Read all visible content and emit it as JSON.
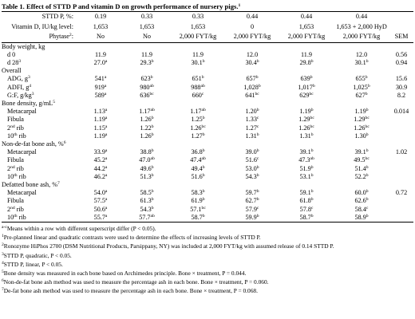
{
  "title": {
    "text": "Table 1. Effect of STTD P and vitamin D on growth performance of nursery pigs.",
    "sup": "1"
  },
  "header_rows": [
    {
      "label": "STTD P, %:",
      "cells": [
        "0.19",
        "0.33",
        "0.33",
        "0.44",
        "0.44",
        "0.44"
      ]
    },
    {
      "label": "Vitamin D, IU/kg level:",
      "cells": [
        "1,653",
        "1,653",
        "1,653",
        "0",
        "1,653",
        "1,653 + 2,000 HyD"
      ]
    },
    {
      "label": {
        "text": "Phytase",
        "sup": "2",
        "after": ":"
      },
      "cells": [
        "No",
        "No",
        "2,000 FYT/kg",
        "2,000 FYT/kg",
        "2,000 FYT/kg",
        "2,000 FYT/kg",
        "SEM"
      ]
    }
  ],
  "sections": [
    {
      "label": "Body weight, kg",
      "rows": [
        {
          "label": "d 0",
          "cells": [
            "11.9",
            "11.9",
            "11.9",
            "12.0",
            "11.9",
            "12.0",
            "0.56"
          ]
        },
        {
          "label": {
            "text": "d 28",
            "sup": "3"
          },
          "cells": [
            {
              "text": "27.0",
              "sup": "a"
            },
            {
              "text": "29.3",
              "sup": "b"
            },
            {
              "text": "30.1",
              "sup": "b"
            },
            {
              "text": "30.4",
              "sup": "b"
            },
            {
              "text": "29.8",
              "sup": "b"
            },
            {
              "text": "30.1",
              "sup": "b"
            },
            "0.94"
          ]
        }
      ]
    },
    {
      "label": "Overall",
      "rows": [
        {
          "label": {
            "text": "ADG, g",
            "sup": "3"
          },
          "cells": [
            {
              "text": "541",
              "sup": "a"
            },
            {
              "text": "623",
              "sup": "b"
            },
            {
              "text": "651",
              "sup": "b"
            },
            {
              "text": "657",
              "sup": "b"
            },
            {
              "text": "639",
              "sup": "b"
            },
            {
              "text": "655",
              "sup": "b"
            },
            "15.6"
          ]
        },
        {
          "label": {
            "text": "ADFI, g",
            "sup": "4"
          },
          "cells": [
            {
              "text": "919",
              "sup": "a"
            },
            {
              "text": "980",
              "sup": "ab"
            },
            {
              "text": "988",
              "sup": "ab"
            },
            {
              "text": "1,028",
              "sup": "b"
            },
            {
              "text": "1,017",
              "sup": "b"
            },
            {
              "text": "1,025",
              "sup": "b"
            },
            "30.9"
          ]
        },
        {
          "label": {
            "text": "G:F, g/kg",
            "sup": "3"
          },
          "cells": [
            {
              "text": "589",
              "sup": "a"
            },
            {
              "text": "636",
              "sup": "bc"
            },
            {
              "text": "660",
              "sup": "c"
            },
            {
              "text": "641",
              "sup": "bc"
            },
            {
              "text": "629",
              "sup": "bc"
            },
            {
              "text": "627",
              "sup": "b"
            },
            "8.2"
          ]
        }
      ]
    },
    {
      "label": {
        "text": "Bone density, g/mL",
        "sup": "5"
      },
      "rows": [
        {
          "label": "Metacarpal",
          "cells": [
            {
              "text": "1.13",
              "sup": "a"
            },
            {
              "text": "1.17",
              "sup": "ab"
            },
            {
              "text": "1.17",
              "sup": "ab"
            },
            {
              "text": "1.20",
              "sup": "b"
            },
            {
              "text": "1.19",
              "sup": "b"
            },
            {
              "text": "1.19",
              "sup": "b"
            },
            "0.014"
          ]
        },
        {
          "label": "Fibula",
          "cells": [
            {
              "text": "1.19",
              "sup": "a"
            },
            {
              "text": "1.26",
              "sup": "b"
            },
            {
              "text": "1.25",
              "sup": "b"
            },
            {
              "text": "1.33",
              "sup": "c"
            },
            {
              "text": "1.29",
              "sup": "bc"
            },
            {
              "text": "1.29",
              "sup": "bc"
            }
          ]
        },
        {
          "label": {
            "text": "2",
            "sup": "nd",
            "after": " rib"
          },
          "cells": [
            {
              "text": "1.15",
              "sup": "a"
            },
            {
              "text": "1.22",
              "sup": "b"
            },
            {
              "text": "1.26",
              "sup": "bc"
            },
            {
              "text": "1.27",
              "sup": "c"
            },
            {
              "text": "1.26",
              "sup": "bc"
            },
            {
              "text": "1.26",
              "sup": "bc"
            }
          ]
        },
        {
          "label": {
            "text": "10",
            "sup": "th",
            "after": " rib"
          },
          "cells": [
            {
              "text": "1.19",
              "sup": "a"
            },
            {
              "text": "1.26",
              "sup": "b"
            },
            {
              "text": "1.27",
              "sup": "b"
            },
            {
              "text": "1.31",
              "sup": "b"
            },
            {
              "text": "1.31",
              "sup": "b"
            },
            {
              "text": "1.30",
              "sup": "b"
            }
          ]
        }
      ]
    },
    {
      "label": {
        "text": "Non-de-fat bone ash, %",
        "sup": "6"
      },
      "rows": [
        {
          "label": "Metacarpal",
          "cells": [
            {
              "text": "33.9",
              "sup": "a"
            },
            {
              "text": "38.8",
              "sup": "b"
            },
            {
              "text": "36.8",
              "sup": "b"
            },
            {
              "text": "39.0",
              "sup": "b"
            },
            {
              "text": "39.1",
              "sup": "b"
            },
            {
              "text": "39.1",
              "sup": "b"
            },
            "1.02"
          ]
        },
        {
          "label": "Fibula",
          "cells": [
            {
              "text": "45.2",
              "sup": "a"
            },
            {
              "text": "47.0",
              "sup": "ab"
            },
            {
              "text": "47.4",
              "sup": "ab"
            },
            {
              "text": "51.6",
              "sup": "c"
            },
            {
              "text": "47.3",
              "sup": "ab"
            },
            {
              "text": "49.5",
              "sup": "bc"
            }
          ]
        },
        {
          "label": {
            "text": "2",
            "sup": "nd",
            "after": " rib"
          },
          "cells": [
            {
              "text": "44.2",
              "sup": "a"
            },
            {
              "text": "49.6",
              "sup": "b"
            },
            {
              "text": "49.4",
              "sup": "b"
            },
            {
              "text": "53.0",
              "sup": "b"
            },
            {
              "text": "51.9",
              "sup": "b"
            },
            {
              "text": "51.4",
              "sup": "b"
            }
          ]
        },
        {
          "label": {
            "text": "10",
            "sup": "th",
            "after": " rib"
          },
          "cells": [
            {
              "text": "46.2",
              "sup": "a"
            },
            {
              "text": "51.3",
              "sup": "b"
            },
            {
              "text": "51.6",
              "sup": "b"
            },
            {
              "text": "54.3",
              "sup": "b"
            },
            {
              "text": "53.1",
              "sup": "b"
            },
            {
              "text": "52.2",
              "sup": "b"
            }
          ]
        }
      ]
    },
    {
      "label": {
        "text": "Defatted bone ash, %",
        "sup": "7"
      },
      "rows": [
        {
          "label": "Metacarpal",
          "cells": [
            {
              "text": "54.0",
              "sup": "a"
            },
            {
              "text": "58.5",
              "sup": "b"
            },
            {
              "text": "58.3",
              "sup": "b"
            },
            {
              "text": "59.7",
              "sup": "b"
            },
            {
              "text": "59.1",
              "sup": "b"
            },
            {
              "text": "60.0",
              "sup": "b"
            },
            "0.72"
          ]
        },
        {
          "label": "Fibula",
          "cells": [
            {
              "text": "57.5",
              "sup": "a"
            },
            {
              "text": "61.3",
              "sup": "b"
            },
            {
              "text": "61.9",
              "sup": "b"
            },
            {
              "text": "62.7",
              "sup": "b"
            },
            {
              "text": "61.8",
              "sup": "b"
            },
            {
              "text": "62.6",
              "sup": "b"
            }
          ]
        },
        {
          "label": {
            "text": "2",
            "sup": "nd",
            "after": " rib"
          },
          "cells": [
            {
              "text": "50.6",
              "sup": "a"
            },
            {
              "text": "54.3",
              "sup": "b"
            },
            {
              "text": "57.1",
              "sup": "bc"
            },
            {
              "text": "57.9",
              "sup": "c"
            },
            {
              "text": "57.8",
              "sup": "c"
            },
            {
              "text": "58.4",
              "sup": "c"
            }
          ]
        },
        {
          "label": {
            "text": "10",
            "sup": "th",
            "after": " rib"
          },
          "cells": [
            {
              "text": "55.7",
              "sup": "a"
            },
            {
              "text": "57.7",
              "sup": "ab"
            },
            {
              "text": "58.7",
              "sup": "b"
            },
            {
              "text": "59.9",
              "sup": "b"
            },
            {
              "text": "58.7",
              "sup": "b"
            },
            {
              "text": "58.9",
              "sup": "b"
            }
          ]
        }
      ]
    }
  ],
  "footnotes": [
    {
      "sup": "a-c",
      "text": "Means within a row with different superscript differ (P < 0.05)."
    },
    {
      "sup": "1",
      "text": "Pre-planned linear and quadratic contrasts were used to determine the effects of increasing levels of STTD P."
    },
    {
      "sup": "2",
      "text": "Ronozyme HiPhos 2700 (DSM Nutritional Products, Parsippany, NY) was included at 2,000 FYT/kg with assumed release of 0.14 STTD P."
    },
    {
      "sup": "3",
      "text": "STTD P, quadratic, P < 0.05."
    },
    {
      "sup": "4",
      "text": "STTD P, linear, P < 0.05."
    },
    {
      "sup": "5",
      "text": "Bone density was measured in each bone based on Archimedes principle. Bone × treatment, P = 0.044."
    },
    {
      "sup": "6",
      "text": "Non-de-fat bone ash method was used to measure the percentage ash in each bone. Bone × treatment, P = 0.060."
    },
    {
      "sup": "7",
      "text": "De-fat bone ash method was used to measure the percentage ash in each bone. Bone × treatment, P = 0.068."
    }
  ]
}
